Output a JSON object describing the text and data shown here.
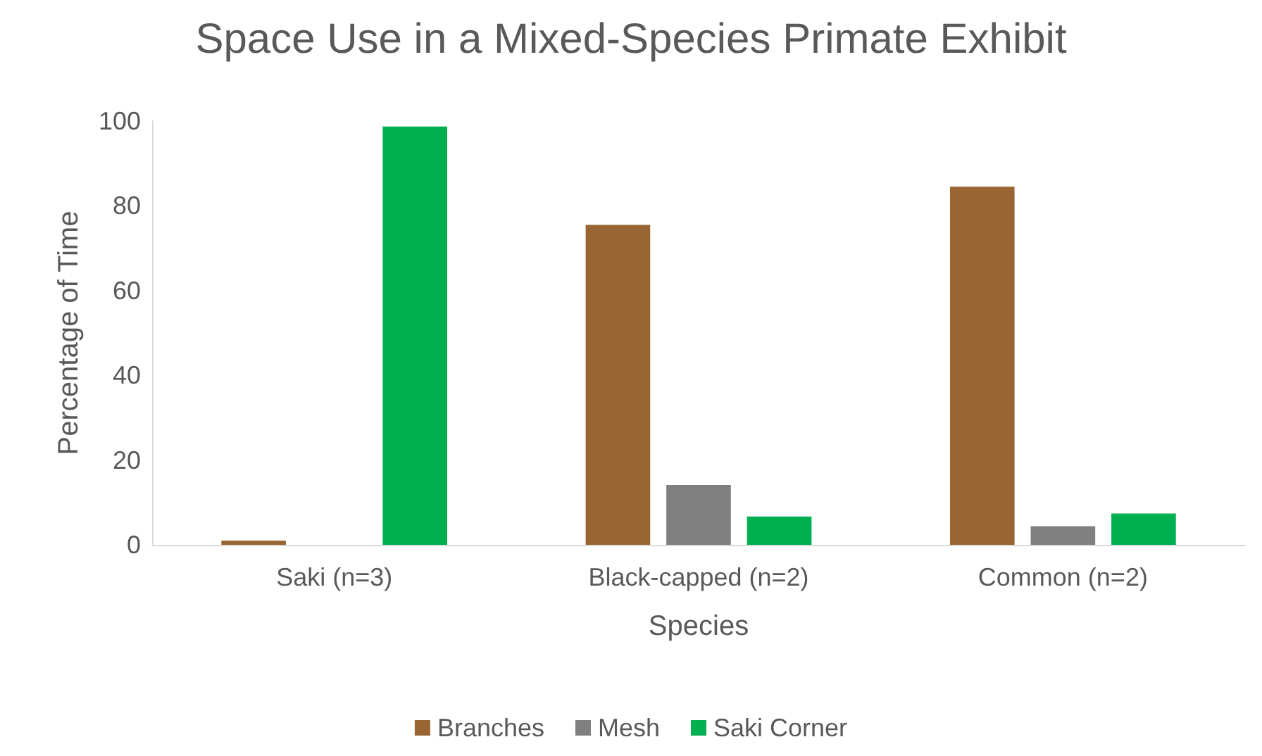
{
  "chart_data": {
    "type": "bar",
    "title": "Space Use in a Mixed-Species Primate Exhibit",
    "xlabel": "Species",
    "ylabel": "Percentage of Time",
    "categories": [
      "Saki (n=3)",
      "Black-capped (n=2)",
      "Common (n=2)"
    ],
    "series": [
      {
        "name": "Branches",
        "color": "#996633",
        "values": [
          1,
          75.5,
          84.5
        ]
      },
      {
        "name": "Mesh",
        "color": "#808080",
        "values": [
          0,
          14.1,
          4.4
        ]
      },
      {
        "name": "Saki Corner",
        "color": "#00b050",
        "values": [
          98.7,
          6.7,
          7.4
        ]
      }
    ],
    "ylim": [
      0,
      100
    ],
    "yticks": [
      0,
      20,
      40,
      60,
      80,
      100
    ],
    "grid": false,
    "legend": "bottom"
  }
}
